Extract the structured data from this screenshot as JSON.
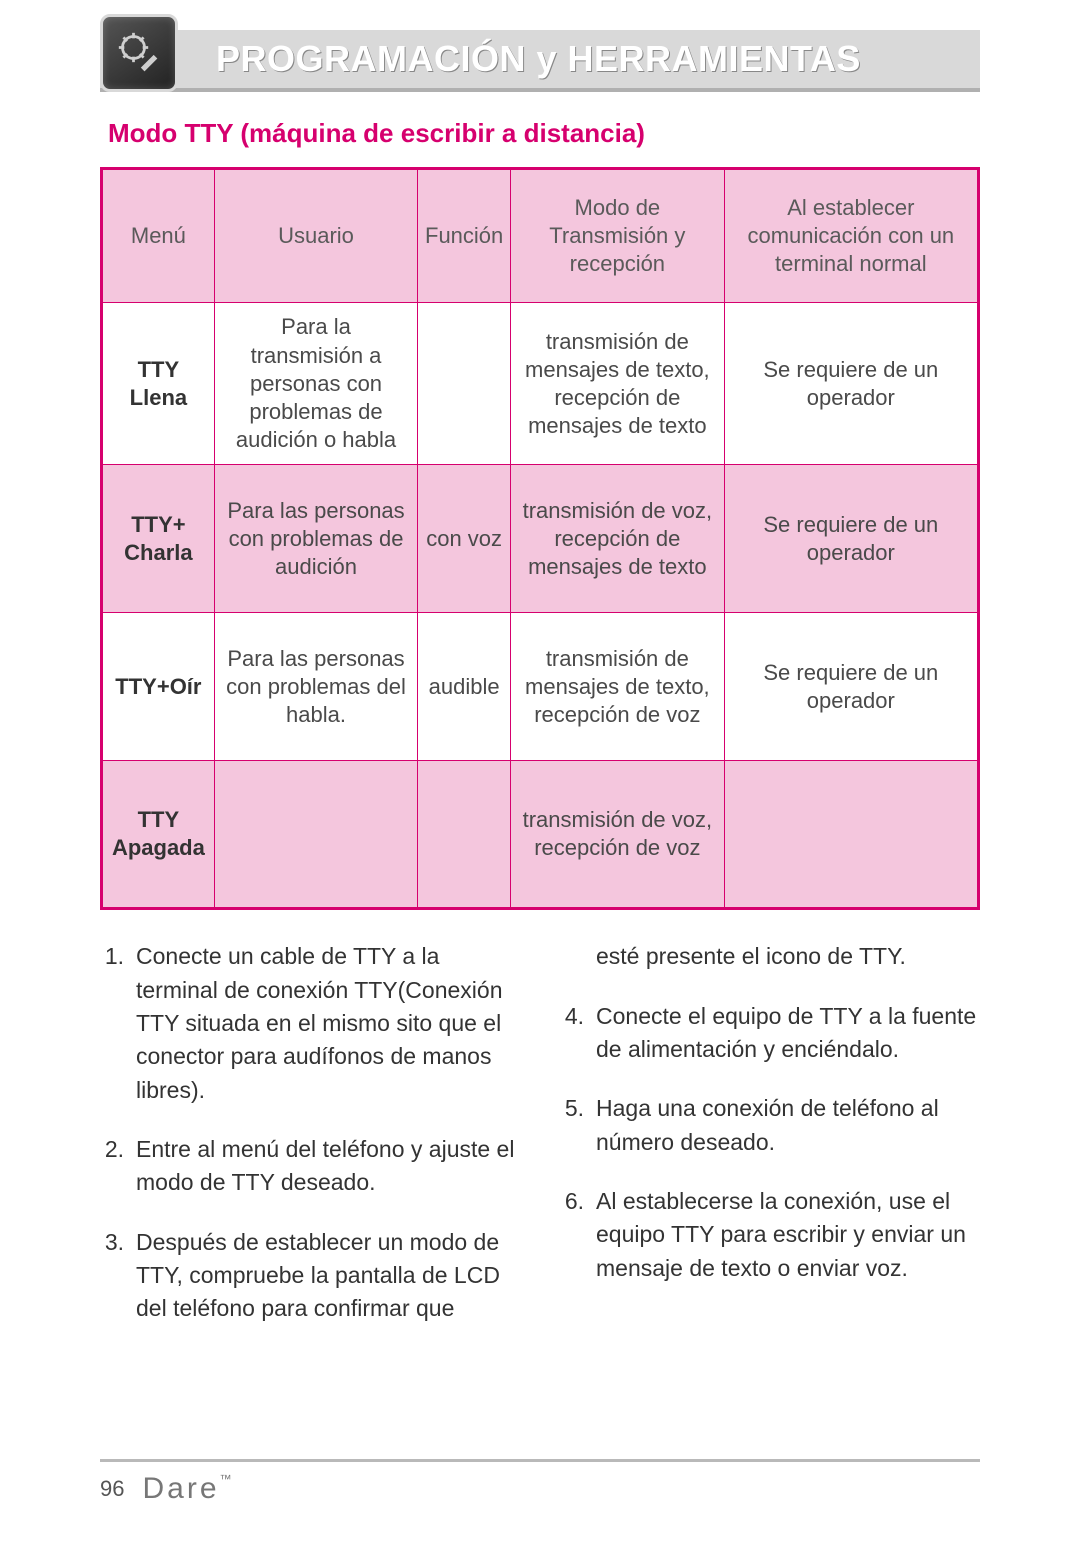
{
  "header": {
    "title": "PROGRAMACIÓN y HERRAMIENTAS",
    "background_color": "#d9d9d9",
    "title_color": "#ffffff"
  },
  "section_title": "Modo TTY (máquina de escribir a distancia)",
  "accent_color": "#d6006e",
  "table": {
    "header_bg": "#f4c6dd",
    "border_color": "#d6006e",
    "columns": [
      "Menú",
      "Usuario",
      "Función",
      "Modo de Transmisión y recepción",
      "Al establecer comunicación con un terminal normal"
    ],
    "rows": [
      {
        "shade": "white",
        "menu": "TTY Llena",
        "usuario": "Para la transmisión a personas con problemas de audición o habla",
        "funcion": "",
        "modo": "transmisión de mensajes de texto, recepción de mensajes de texto",
        "comm": "Se requiere de un operador"
      },
      {
        "shade": "pink",
        "menu": "TTY+ Charla",
        "usuario": "Para las personas con problemas de audición",
        "funcion": "con voz",
        "modo": "transmisión de voz, recepción de mensajes de texto",
        "comm": "Se requiere de un operador"
      },
      {
        "shade": "white",
        "menu": "TTY+Oír",
        "usuario": "Para las personas con problemas del habla.",
        "funcion": "audible",
        "modo": "transmisión de mensajes de texto, recepción de voz",
        "comm": "Se requiere de un operador"
      },
      {
        "shade": "pink",
        "menu": "TTY Apagada",
        "usuario": "",
        "funcion": "",
        "modo": "transmisión de voz, recepción de voz",
        "comm": ""
      }
    ]
  },
  "steps": {
    "left": [
      {
        "n": "1.",
        "t": "Conecte un cable de TTY a la terminal de conexión TTY(Conexión TTY situada en el mismo sito que el conector para audífonos de manos libres)."
      },
      {
        "n": "2.",
        "t": "Entre al menú del teléfono y ajuste el modo de TTY deseado."
      },
      {
        "n": "3.",
        "t": "Después de establecer un modo de TTY, compruebe la pantalla de LCD del teléfono para confirmar que"
      }
    ],
    "right_cont": "esté presente el icono de TTY.",
    "right": [
      {
        "n": "4.",
        "t": "Conecte el equipo de TTY a la fuente de alimentación y enciéndalo."
      },
      {
        "n": "5.",
        "t": "Haga una conexión de teléfono al número deseado."
      },
      {
        "n": "6.",
        "t": "Al establecerse la conexión, use el equipo TTY para escribir y enviar un mensaje de texto o enviar voz."
      }
    ]
  },
  "footer": {
    "page_number": "96",
    "brand": "Dare",
    "tm": "™"
  }
}
